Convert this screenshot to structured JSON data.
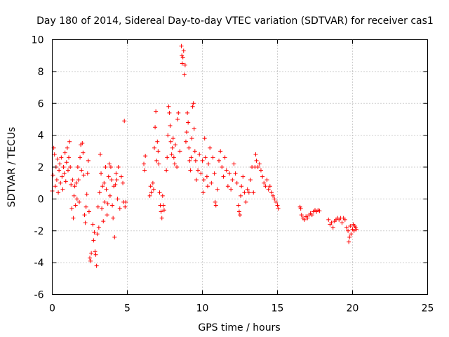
{
  "chart_data": {
    "type": "scatter",
    "title": "Day 180 of 2014, Sidereal Day-to-day VTEC variation (SDTVAR) for receiver cas1",
    "xlabel": "GPS time / hours",
    "ylabel": "SDTVAR / TECUs",
    "xlim": [
      0,
      25
    ],
    "ylim": [
      -6,
      10
    ],
    "xticks": [
      0,
      5,
      10,
      15,
      20,
      25
    ],
    "yticks": [
      -6,
      -4,
      -2,
      0,
      2,
      4,
      6,
      8,
      10
    ],
    "grid": true,
    "marker": "+",
    "marker_color": "#ff0000",
    "series": [
      {
        "name": "cas1",
        "points": [
          [
            0.0,
            0.5
          ],
          [
            0.05,
            1.5
          ],
          [
            0.1,
            3.2
          ],
          [
            0.15,
            2.8
          ],
          [
            0.2,
            0.8
          ],
          [
            0.25,
            2.0
          ],
          [
            0.3,
            1.2
          ],
          [
            0.35,
            2.5
          ],
          [
            0.4,
            0.4
          ],
          [
            0.45,
            1.8
          ],
          [
            0.5,
            2.2
          ],
          [
            0.55,
            1.0
          ],
          [
            0.6,
            2.6
          ],
          [
            0.65,
            1.4
          ],
          [
            0.7,
            0.6
          ],
          [
            0.75,
            2.0
          ],
          [
            0.8,
            1.6
          ],
          [
            0.85,
            2.9
          ],
          [
            0.9,
            1.1
          ],
          [
            0.95,
            2.3
          ],
          [
            1.0,
            3.2
          ],
          [
            1.05,
            1.8
          ],
          [
            1.1,
            2.6
          ],
          [
            1.15,
            3.6
          ],
          [
            1.2,
            2.0
          ],
          [
            1.25,
            0.9
          ],
          [
            1.3,
            -0.6
          ],
          [
            1.35,
            1.2
          ],
          [
            1.4,
            -1.2
          ],
          [
            1.45,
            0.2
          ],
          [
            1.5,
            0.8
          ],
          [
            1.55,
            -0.4
          ],
          [
            1.6,
            1.0
          ],
          [
            1.65,
            0.0
          ],
          [
            1.7,
            2.0
          ],
          [
            1.75,
            1.2
          ],
          [
            1.8,
            -0.2
          ],
          [
            1.85,
            2.6
          ],
          [
            1.9,
            3.4
          ],
          [
            1.95,
            1.8
          ],
          [
            2.0,
            3.5
          ],
          [
            2.05,
            2.9
          ],
          [
            2.1,
            1.5
          ],
          [
            2.15,
            -1.0
          ],
          [
            2.2,
            -1.5
          ],
          [
            2.25,
            -0.5
          ],
          [
            2.3,
            0.3
          ],
          [
            2.35,
            1.6
          ],
          [
            2.4,
            2.4
          ],
          [
            2.45,
            -0.8
          ],
          [
            2.5,
            -3.7
          ],
          [
            2.55,
            -3.9
          ],
          [
            2.6,
            -3.4
          ],
          [
            2.7,
            -1.6
          ],
          [
            2.75,
            -2.6
          ],
          [
            2.8,
            -2.1
          ],
          [
            2.85,
            -3.3
          ],
          [
            2.9,
            -3.5
          ],
          [
            2.95,
            -4.2
          ],
          [
            3.0,
            -2.2
          ],
          [
            3.05,
            -0.5
          ],
          [
            3.1,
            -1.8
          ],
          [
            3.15,
            0.4
          ],
          [
            3.2,
            2.8
          ],
          [
            3.25,
            1.6
          ],
          [
            3.3,
            -0.6
          ],
          [
            3.35,
            0.8
          ],
          [
            3.4,
            -1.4
          ],
          [
            3.45,
            1.0
          ],
          [
            3.5,
            -0.2
          ],
          [
            3.55,
            2.0
          ],
          [
            3.6,
            0.6
          ],
          [
            3.65,
            -1.0
          ],
          [
            3.7,
            -0.3
          ],
          [
            3.75,
            1.4
          ],
          [
            3.8,
            2.2
          ],
          [
            3.85,
            0.2
          ],
          [
            3.9,
            2.0
          ],
          [
            3.95,
            1.2
          ],
          [
            4.0,
            -0.4
          ],
          [
            4.05,
            -1.2
          ],
          [
            4.1,
            0.8
          ],
          [
            4.15,
            -2.4
          ],
          [
            4.2,
            0.9
          ],
          [
            4.25,
            1.6
          ],
          [
            4.3,
            1.2
          ],
          [
            4.35,
            0.0
          ],
          [
            4.4,
            2.0
          ],
          [
            4.5,
            -0.6
          ],
          [
            4.6,
            1.4
          ],
          [
            4.7,
            1.0
          ],
          [
            4.75,
            -0.2
          ],
          [
            4.8,
            4.9
          ],
          [
            4.85,
            -0.5
          ],
          [
            4.9,
            -0.2
          ],
          [
            6.1,
            2.2
          ],
          [
            6.15,
            1.8
          ],
          [
            6.2,
            2.7
          ],
          [
            6.5,
            0.2
          ],
          [
            6.55,
            0.8
          ],
          [
            6.6,
            0.4
          ],
          [
            6.7,
            1.0
          ],
          [
            6.75,
            0.6
          ],
          [
            6.8,
            3.2
          ],
          [
            6.85,
            4.5
          ],
          [
            6.9,
            5.5
          ],
          [
            6.95,
            2.4
          ],
          [
            7.0,
            3.6
          ],
          [
            7.05,
            3.0
          ],
          [
            7.1,
            2.2
          ],
          [
            7.15,
            0.4
          ],
          [
            7.2,
            -0.4
          ],
          [
            7.25,
            -0.8
          ],
          [
            7.3,
            -1.2
          ],
          [
            7.35,
            0.2
          ],
          [
            7.4,
            -0.4
          ],
          [
            7.45,
            -0.7
          ],
          [
            7.6,
            1.8
          ],
          [
            7.65,
            2.6
          ],
          [
            7.7,
            4.0
          ],
          [
            7.75,
            5.8
          ],
          [
            7.8,
            5.4
          ],
          [
            7.85,
            4.6
          ],
          [
            7.9,
            3.6
          ],
          [
            7.95,
            2.8
          ],
          [
            8.0,
            3.2
          ],
          [
            8.05,
            3.8
          ],
          [
            8.1,
            2.6
          ],
          [
            8.15,
            2.2
          ],
          [
            8.2,
            3.4
          ],
          [
            8.3,
            2.0
          ],
          [
            8.35,
            5.0
          ],
          [
            8.4,
            5.4
          ],
          [
            8.5,
            3.0
          ],
          [
            8.6,
            9.6
          ],
          [
            8.63,
            9.0
          ],
          [
            8.66,
            8.5
          ],
          [
            8.7,
            8.9
          ],
          [
            8.75,
            9.3
          ],
          [
            8.8,
            7.8
          ],
          [
            8.85,
            8.4
          ],
          [
            8.9,
            3.6
          ],
          [
            8.95,
            4.2
          ],
          [
            9.0,
            5.4
          ],
          [
            9.05,
            4.8
          ],
          [
            9.1,
            3.2
          ],
          [
            9.15,
            2.4
          ],
          [
            9.2,
            1.8
          ],
          [
            9.25,
            2.6
          ],
          [
            9.3,
            3.8
          ],
          [
            9.35,
            5.8
          ],
          [
            9.4,
            6.0
          ],
          [
            9.45,
            4.4
          ],
          [
            9.5,
            3.0
          ],
          [
            9.55,
            2.4
          ],
          [
            9.6,
            1.2
          ],
          [
            9.7,
            1.8
          ],
          [
            9.8,
            2.8
          ],
          [
            9.9,
            1.6
          ],
          [
            10.0,
            2.4
          ],
          [
            10.05,
            0.4
          ],
          [
            10.1,
            1.2
          ],
          [
            10.15,
            3.8
          ],
          [
            10.2,
            2.6
          ],
          [
            10.3,
            1.4
          ],
          [
            10.35,
            0.8
          ],
          [
            10.4,
            2.2
          ],
          [
            10.5,
            3.2
          ],
          [
            10.6,
            1.0
          ],
          [
            10.7,
            2.6
          ],
          [
            10.8,
            1.6
          ],
          [
            10.85,
            -0.2
          ],
          [
            10.9,
            -0.4
          ],
          [
            11.0,
            0.6
          ],
          [
            11.1,
            2.4
          ],
          [
            11.2,
            3.0
          ],
          [
            11.3,
            2.0
          ],
          [
            11.4,
            1.4
          ],
          [
            11.5,
            2.6
          ],
          [
            11.6,
            1.8
          ],
          [
            11.7,
            0.8
          ],
          [
            11.8,
            1.6
          ],
          [
            11.9,
            0.6
          ],
          [
            12.0,
            1.2
          ],
          [
            12.1,
            2.2
          ],
          [
            12.2,
            1.6
          ],
          [
            12.3,
            1.0
          ],
          [
            12.4,
            -0.4
          ],
          [
            12.45,
            -0.8
          ],
          [
            12.5,
            -1.0
          ],
          [
            12.55,
            0.2
          ],
          [
            12.6,
            0.8
          ],
          [
            12.7,
            1.4
          ],
          [
            12.8,
            0.4
          ],
          [
            12.9,
            -0.2
          ],
          [
            13.0,
            0.6
          ],
          [
            13.1,
            0.4
          ],
          [
            13.2,
            1.2
          ],
          [
            13.3,
            2.0
          ],
          [
            13.4,
            0.4
          ],
          [
            13.5,
            2.0
          ],
          [
            13.55,
            2.8
          ],
          [
            13.6,
            2.4
          ],
          [
            13.7,
            2.0
          ],
          [
            13.8,
            2.2
          ],
          [
            13.9,
            1.8
          ],
          [
            14.0,
            1.4
          ],
          [
            14.1,
            1.0
          ],
          [
            14.2,
            0.8
          ],
          [
            14.3,
            1.2
          ],
          [
            14.4,
            0.6
          ],
          [
            14.5,
            0.8
          ],
          [
            14.6,
            0.4
          ],
          [
            14.7,
            0.2
          ],
          [
            14.8,
            0.0
          ],
          [
            14.9,
            -0.2
          ],
          [
            15.0,
            -0.4
          ],
          [
            15.05,
            -0.6
          ],
          [
            16.5,
            -0.5
          ],
          [
            16.55,
            -0.6
          ],
          [
            16.6,
            -1.0
          ],
          [
            16.7,
            -1.2
          ],
          [
            16.8,
            -1.3
          ],
          [
            16.9,
            -1.1
          ],
          [
            17.0,
            -1.2
          ],
          [
            17.1,
            -1.0
          ],
          [
            17.2,
            -0.9
          ],
          [
            17.3,
            -1.0
          ],
          [
            17.4,
            -0.8
          ],
          [
            17.5,
            -0.7
          ],
          [
            17.6,
            -0.8
          ],
          [
            17.7,
            -0.7
          ],
          [
            17.8,
            -0.75
          ],
          [
            18.4,
            -1.3
          ],
          [
            18.5,
            -1.6
          ],
          [
            18.6,
            -1.5
          ],
          [
            18.7,
            -1.8
          ],
          [
            18.8,
            -1.4
          ],
          [
            18.9,
            -1.3
          ],
          [
            19.0,
            -1.2
          ],
          [
            19.1,
            -1.3
          ],
          [
            19.2,
            -1.2
          ],
          [
            19.3,
            -1.5
          ],
          [
            19.4,
            -1.2
          ],
          [
            19.5,
            -1.3
          ],
          [
            19.6,
            -1.8
          ],
          [
            19.7,
            -2.0
          ],
          [
            19.75,
            -2.7
          ],
          [
            19.8,
            -2.4
          ],
          [
            19.85,
            -1.7
          ],
          [
            19.9,
            -2.2
          ],
          [
            20.0,
            -1.9
          ],
          [
            20.05,
            -1.6
          ],
          [
            20.1,
            -2.0
          ],
          [
            20.15,
            -1.7
          ],
          [
            20.2,
            -1.8
          ],
          [
            20.25,
            -1.9
          ]
        ]
      }
    ]
  }
}
